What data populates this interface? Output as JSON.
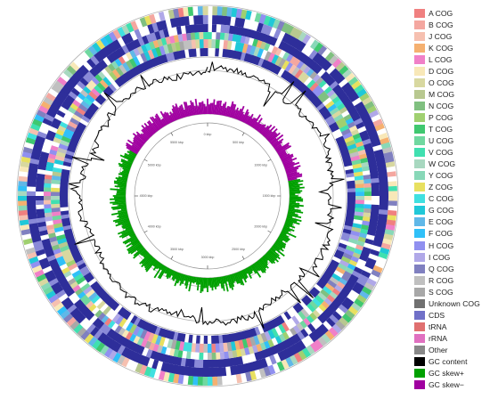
{
  "legend": [
    {
      "label": "A COG",
      "color": "#f08080"
    },
    {
      "label": "B COG",
      "color": "#f4a7a0"
    },
    {
      "label": "J COG",
      "color": "#f6c0b0"
    },
    {
      "label": "K COG",
      "color": "#f5b070"
    },
    {
      "label": "L COG",
      "color": "#f080c8"
    },
    {
      "label": "D COG",
      "color": "#f8e8b8"
    },
    {
      "label": "O COG",
      "color": "#d8d8a0"
    },
    {
      "label": "M COG",
      "color": "#b8c890"
    },
    {
      "label": "N COG",
      "color": "#80c080"
    },
    {
      "label": "P COG",
      "color": "#a0d070"
    },
    {
      "label": "T COG",
      "color": "#40c870"
    },
    {
      "label": "U COG",
      "color": "#70d8a0"
    },
    {
      "label": "V COG",
      "color": "#40e0b0"
    },
    {
      "label": "W COG",
      "color": "#a8d8c0"
    },
    {
      "label": "Y COG",
      "color": "#88d8b8"
    },
    {
      "label": "Z COG",
      "color": "#e8e060"
    },
    {
      "label": "C COG",
      "color": "#40e0e0"
    },
    {
      "label": "G COG",
      "color": "#20c8d8"
    },
    {
      "label": "E COG",
      "color": "#60b8e8"
    },
    {
      "label": "F COG",
      "color": "#30c0f8"
    },
    {
      "label": "H COG",
      "color": "#9090f0"
    },
    {
      "label": "I COG",
      "color": "#b0a8e8"
    },
    {
      "label": "Q COG",
      "color": "#8080c0"
    },
    {
      "label": "R COG",
      "color": "#c0c0c0"
    },
    {
      "label": "S COG",
      "color": "#a8a8a8"
    },
    {
      "label": "Unknown COG",
      "color": "#707070"
    },
    {
      "label": "CDS",
      "color": "#7070c8"
    },
    {
      "label": "tRNA",
      "color": "#e07070"
    },
    {
      "label": "rRNA",
      "color": "#e070c0"
    },
    {
      "label": "Other",
      "color": "#888888"
    },
    {
      "label": "GC content",
      "color": "#000000"
    },
    {
      "label": "GC skew+",
      "color": "#00a000"
    },
    {
      "label": "GC skew−",
      "color": "#a000a0"
    }
  ],
  "scale_labels": [
    "0 kbp",
    "500 kbp",
    "1000 kbp",
    "1500 kbp",
    "2000 kbp",
    "2500 kbp",
    "3000 kbp",
    "3500 kbp",
    "4000 kbp",
    "4500 kbp",
    "5000 kbp",
    "5500 kbp"
  ],
  "colors": {
    "cds_dark": "#2e2e9a",
    "cds_light": "#8a8ad8",
    "gc_content": "#000000",
    "gc_skew_pos": "#00a000",
    "gc_skew_neg": "#a000a0",
    "ring_line": "#b0b0b0"
  }
}
